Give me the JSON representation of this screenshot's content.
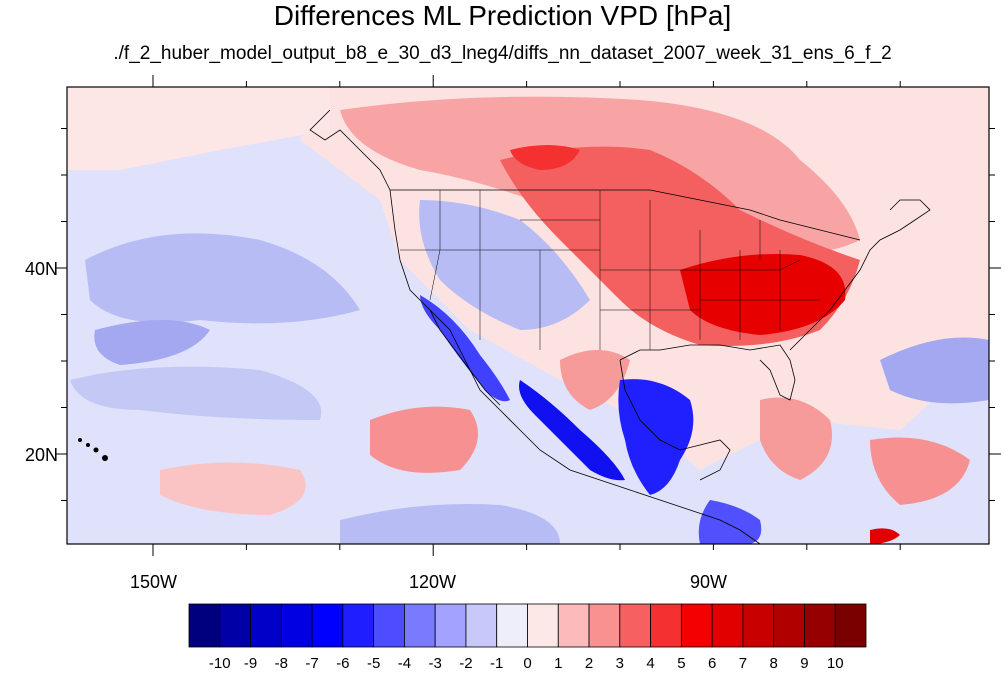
{
  "title": "Differences ML Prediction VPD [hPa]",
  "subtitle": "./f_2_huber_model_output_b8_e_30_d3_lneg4/diffs_nn_dataset_2007_week_31_ens_6_f_2",
  "lat_labels": [
    "40N",
    "20N"
  ],
  "lon_labels": [
    "150W",
    "120W",
    "90W"
  ],
  "colorbar": {
    "labels": [
      "-10",
      "-9",
      "-8",
      "-7",
      "-6",
      "-5",
      "-4",
      "-3",
      "-2",
      "-1",
      "0",
      "1",
      "2",
      "3",
      "4",
      "5",
      "6",
      "7",
      "8",
      "9",
      "10"
    ],
    "colors": [
      "#00007f",
      "#0000a6",
      "#0000c8",
      "#0000e3",
      "#0000ff",
      "#1e1eff",
      "#4d4dff",
      "#7a7aff",
      "#a3a3ff",
      "#c8c8fa",
      "#eeeefa",
      "#fde8e8",
      "#fcbaba",
      "#f99191",
      "#f66060",
      "#f43030",
      "#f50000",
      "#e00000",
      "#c80000",
      "#b10000",
      "#960000",
      "#7a0000"
    ]
  },
  "colors": {
    "ocean_base": "#dfe2fa",
    "land_base": "#fde8e8",
    "outline": "#000000"
  }
}
